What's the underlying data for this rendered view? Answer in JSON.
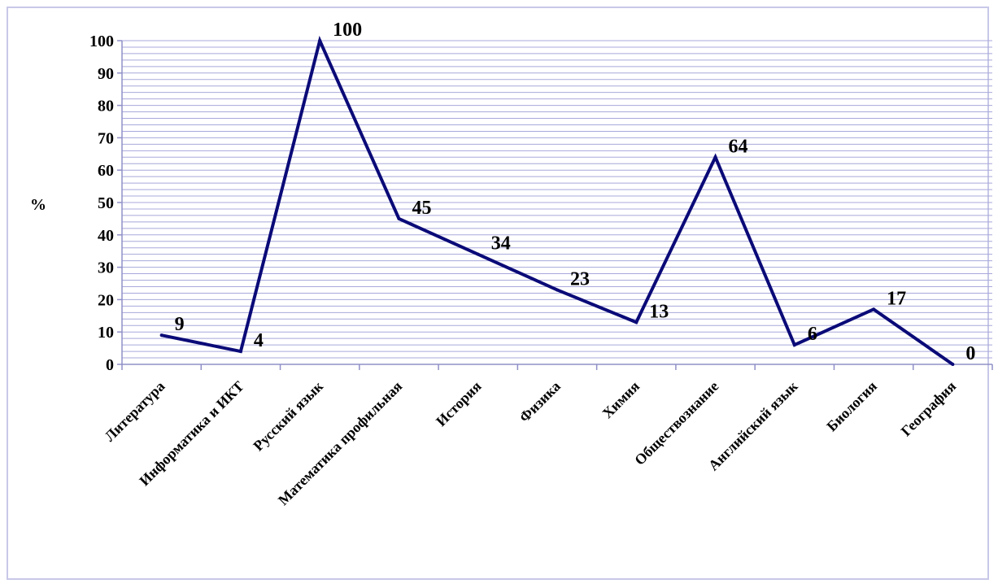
{
  "chart_data": {
    "type": "line",
    "title": "",
    "xlabel": "",
    "ylabel": "%",
    "ylim": [
      0,
      100
    ],
    "yticks": [
      0,
      10,
      20,
      30,
      40,
      50,
      60,
      70,
      80,
      90,
      100
    ],
    "grid": true,
    "legend": "none",
    "categories": [
      "Литература",
      "Информатика и ИКТ",
      "Русский язык",
      "Математика профильная",
      "История",
      "Физика",
      "Химия",
      "Обществознание",
      "Английский язык",
      "Биология",
      "География"
    ],
    "values": [
      9,
      4,
      100,
      45,
      34,
      23,
      13,
      64,
      6,
      17,
      0
    ]
  },
  "colors": {
    "line": "#0a0a78",
    "grid": "#a8a8dc",
    "axis": "#9090c8",
    "frame": "#c8c8e8"
  }
}
